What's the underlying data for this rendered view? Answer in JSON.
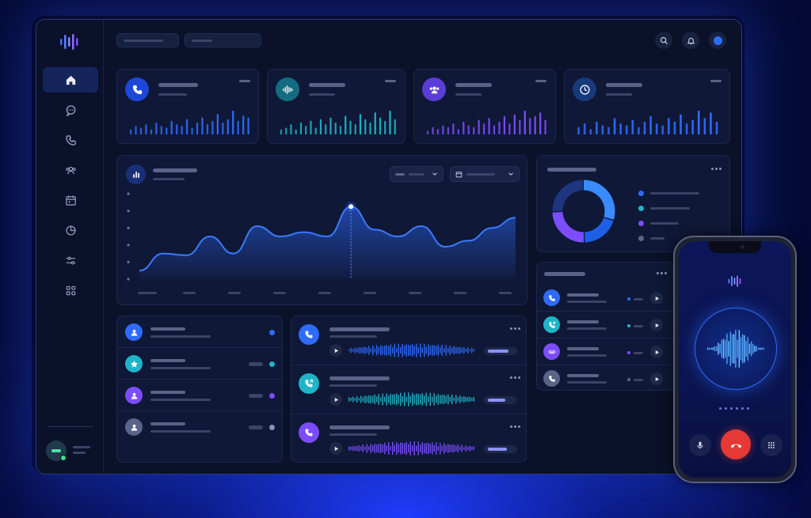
{
  "colors": {
    "accent": "#2f6bff",
    "teal": "#1fb5c8",
    "purple": "#7b4dff",
    "muted": "#5a6488",
    "end_call": "#e53935"
  },
  "sidebar": {
    "logo_icon": "waveform-logo-icon",
    "items": [
      {
        "id": "home",
        "icon": "home-icon",
        "active": true
      },
      {
        "id": "messages",
        "icon": "chat-icon",
        "active": false
      },
      {
        "id": "calls",
        "icon": "phone-icon",
        "active": false
      },
      {
        "id": "contacts",
        "icon": "users-icon",
        "active": false
      },
      {
        "id": "calendar",
        "icon": "calendar-icon",
        "active": false
      },
      {
        "id": "reports",
        "icon": "pie-chart-icon",
        "active": false
      },
      {
        "id": "settings",
        "icon": "sliders-icon",
        "active": false
      },
      {
        "id": "apps",
        "icon": "grid-icon",
        "active": false
      }
    ]
  },
  "topbar": {
    "icons": [
      "search-icon",
      "bell-icon",
      "profile-dot-icon"
    ]
  },
  "stat_cards": [
    {
      "icon": "phone-icon",
      "color": "#2f6bff",
      "bar_values": [
        3,
        5,
        4,
        6,
        3,
        7,
        5,
        4,
        8,
        6,
        5,
        9,
        4,
        7,
        10,
        6,
        8,
        12,
        7,
        9,
        14,
        8,
        11,
        10
      ]
    },
    {
      "icon": "waveform-icon",
      "color": "#1fb5c8",
      "bar_values": [
        3,
        4,
        6,
        3,
        7,
        5,
        8,
        4,
        9,
        6,
        10,
        7,
        5,
        11,
        8,
        6,
        12,
        9,
        7,
        13,
        10,
        8,
        14,
        9
      ]
    },
    {
      "icon": "users-icon",
      "color": "#7b4dff",
      "bar_values": [
        2,
        4,
        3,
        5,
        4,
        6,
        3,
        7,
        5,
        4,
        8,
        6,
        9,
        5,
        7,
        10,
        6,
        11,
        8,
        13,
        9,
        10,
        12,
        8
      ]
    },
    {
      "icon": "clock-icon",
      "color": "#2f6bff",
      "bar_values": [
        4,
        6,
        3,
        7,
        5,
        4,
        9,
        6,
        5,
        8,
        4,
        7,
        10,
        6,
        5,
        9,
        7,
        11,
        6,
        8,
        13,
        9,
        12,
        7
      ]
    }
  ],
  "main_chart": {
    "icon": "bar-chart-icon",
    "dropdown_icons": [
      "chevron-down-icon",
      "calendar-icon"
    ]
  },
  "chart_data": {
    "type": "area",
    "x": [
      0,
      1,
      2,
      3,
      4,
      5,
      6,
      7,
      8,
      9,
      10,
      11,
      12,
      13,
      14,
      15,
      16
    ],
    "values": [
      0.1,
      0.3,
      0.28,
      0.5,
      0.3,
      0.62,
      0.5,
      0.55,
      0.5,
      0.85,
      0.58,
      0.5,
      0.62,
      0.38,
      0.45,
      0.6,
      0.72
    ],
    "highlight_index": 9,
    "ylim": [
      0,
      1
    ],
    "grid": false
  },
  "donut": {
    "segments": [
      {
        "value": 30,
        "color": "#3a8bff"
      },
      {
        "value": 20,
        "color": "#1f5fe6"
      },
      {
        "value": 25,
        "color": "#7b4dff"
      },
      {
        "value": 25,
        "color": "#1e3580"
      }
    ],
    "legend_colors": [
      "#2f6bff",
      "#1fb5c8",
      "#7b4dff",
      "#5a6488"
    ]
  },
  "recent_calls": {
    "rows": [
      {
        "icon": "phone-icon",
        "color": "#2f6bff"
      },
      {
        "icon": "phone-outgoing-icon",
        "color": "#1fb5c8"
      },
      {
        "icon": "voicemail-icon",
        "color": "#7b4dff"
      },
      {
        "icon": "phone-icon",
        "color": "#5a6488"
      }
    ]
  },
  "contacts": {
    "rows": [
      {
        "icon": "user-icon",
        "color": "#2f6bff",
        "status": "#2f6bff",
        "badge": false
      },
      {
        "icon": "star-icon",
        "color": "#1fb5c8",
        "status": "#1fb5c8",
        "badge": true
      },
      {
        "icon": "user-icon",
        "color": "#7b4dff",
        "status": "#7b4dff",
        "badge": true
      },
      {
        "icon": "user-icon",
        "color": "#5a6488",
        "status": "#8a93b5",
        "badge": true
      }
    ]
  },
  "recordings": {
    "items": [
      {
        "icon": "phone-icon",
        "color": "#2f6bff",
        "progress": 0.8
      },
      {
        "icon": "phone-outgoing-icon",
        "color": "#1fb5c8",
        "progress": 0.7
      },
      {
        "icon": "phone-icon",
        "color": "#7b4dff",
        "progress": 0.75
      }
    ]
  },
  "phone": {
    "logo_icon": "waveform-logo-icon",
    "buttons": [
      "microphone-icon",
      "end-call-icon",
      "keypad-icon"
    ]
  }
}
